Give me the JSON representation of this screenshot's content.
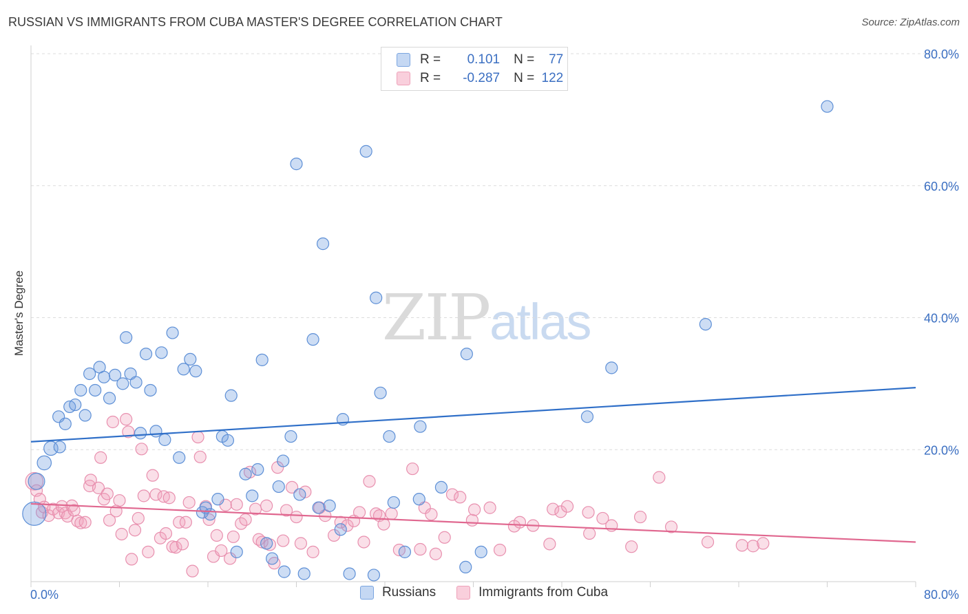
{
  "title": "RUSSIAN VS IMMIGRANTS FROM CUBA MASTER'S DEGREE CORRELATION CHART",
  "source": "Source: ZipAtlas.com",
  "watermark": {
    "part1": "ZIP",
    "part2": "atlas"
  },
  "legend": {
    "rows": [
      {
        "r_label": "R =",
        "r_value": "0.101",
        "n_label": "N =",
        "n_value": "77"
      },
      {
        "r_label": "R =",
        "r_value": "-0.287",
        "n_label": "N =",
        "n_value": "122"
      }
    ]
  },
  "chart_data": {
    "type": "scatter",
    "title": "RUSSIAN VS IMMIGRANTS FROM CUBA MASTER'S DEGREE CORRELATION CHART",
    "xlabel": "",
    "ylabel": "Master's Degree",
    "xlim": [
      0,
      80
    ],
    "ylim": [
      0,
      80
    ],
    "x_tick_labels": [
      "0.0%",
      "80.0%"
    ],
    "y_tick_labels": [
      "20.0%",
      "40.0%",
      "60.0%",
      "80.0%"
    ],
    "y_ticks": [
      20,
      40,
      60,
      80
    ],
    "grid": "horizontal dashed",
    "legend_position": "top-center",
    "colors": {
      "russians": "#6f9fe0",
      "cuba": "#f2a3bd",
      "russians_line": "#2f6fc8",
      "cuba_line": "#e0678f"
    },
    "series": [
      {
        "name": "Russians",
        "trend": [
          [
            0,
            21.2
          ],
          [
            80,
            29.4
          ]
        ],
        "points": [
          [
            0.3,
            10.3,
            2.0
          ],
          [
            0.5,
            15.2,
            1.4
          ],
          [
            1.2,
            18.0,
            1.2
          ],
          [
            1.8,
            20.2,
            1.2
          ],
          [
            2.6,
            20.4,
            1.0
          ],
          [
            2.5,
            25.0,
            1.0
          ],
          [
            3.1,
            23.9,
            1.0
          ],
          [
            3.5,
            26.5,
            1.0
          ],
          [
            4.0,
            26.8,
            1.0
          ],
          [
            4.5,
            29.0,
            1.0
          ],
          [
            4.9,
            25.2,
            1.0
          ],
          [
            5.3,
            31.5,
            1.0
          ],
          [
            5.8,
            29.0,
            1.0
          ],
          [
            6.2,
            32.5,
            1.0
          ],
          [
            6.6,
            31.0,
            1.0
          ],
          [
            7.1,
            27.8,
            1.0
          ],
          [
            7.6,
            31.3,
            1.0
          ],
          [
            8.3,
            30.0,
            1.0
          ],
          [
            8.6,
            37.0,
            1.0
          ],
          [
            9.0,
            31.5,
            1.0
          ],
          [
            9.5,
            30.2,
            1.0
          ],
          [
            9.9,
            22.5,
            1.0
          ],
          [
            10.4,
            34.5,
            1.0
          ],
          [
            10.8,
            29.0,
            1.0
          ],
          [
            11.3,
            22.8,
            1.0
          ],
          [
            11.8,
            34.7,
            1.0
          ],
          [
            12.1,
            21.5,
            1.0
          ],
          [
            12.8,
            37.7,
            1.0
          ],
          [
            13.4,
            18.8,
            1.0
          ],
          [
            13.8,
            32.2,
            1.0
          ],
          [
            14.4,
            33.7,
            1.0
          ],
          [
            14.9,
            31.9,
            1.0
          ],
          [
            15.5,
            10.5,
            1.0
          ],
          [
            15.8,
            11.2,
            1.0
          ],
          [
            16.2,
            10.2,
            1.0
          ],
          [
            16.9,
            12.5,
            1.0
          ],
          [
            17.3,
            22.0,
            1.0
          ],
          [
            17.8,
            21.4,
            1.0
          ],
          [
            18.1,
            28.2,
            1.0
          ],
          [
            18.6,
            4.5,
            1.0
          ],
          [
            19.4,
            16.3,
            1.0
          ],
          [
            20.0,
            13.0,
            1.0
          ],
          [
            20.5,
            17.0,
            1.0
          ],
          [
            20.9,
            33.6,
            1.0
          ],
          [
            21.3,
            5.8,
            1.0
          ],
          [
            21.8,
            3.5,
            1.0
          ],
          [
            22.4,
            14.4,
            1.0
          ],
          [
            22.8,
            18.3,
            1.0
          ],
          [
            22.9,
            1.5,
            1.0
          ],
          [
            23.5,
            22.0,
            1.0
          ],
          [
            24.0,
            63.3,
            1.0
          ],
          [
            24.3,
            13.2,
            1.0
          ],
          [
            24.7,
            1.2,
            1.0
          ],
          [
            25.5,
            36.7,
            1.0
          ],
          [
            26.0,
            11.2,
            1.0
          ],
          [
            26.4,
            51.2,
            1.0
          ],
          [
            27.0,
            11.5,
            1.0
          ],
          [
            28.2,
            24.6,
            1.0
          ],
          [
            28.8,
            1.2,
            1.0
          ],
          [
            28.0,
            7.9,
            1.0
          ],
          [
            30.3,
            65.2,
            1.0
          ],
          [
            31.0,
            1.0,
            1.0
          ],
          [
            31.2,
            43.0,
            1.0
          ],
          [
            31.6,
            28.6,
            1.0
          ],
          [
            32.4,
            22.0,
            1.0
          ],
          [
            32.8,
            12.0,
            1.0
          ],
          [
            33.8,
            4.5,
            1.0
          ],
          [
            35.1,
            12.5,
            1.0
          ],
          [
            35.2,
            23.5,
            1.0
          ],
          [
            37.1,
            14.3,
            1.0
          ],
          [
            39.3,
            2.2,
            1.0
          ],
          [
            39.4,
            34.5,
            1.0
          ],
          [
            40.7,
            4.5,
            1.0
          ],
          [
            50.3,
            25.0,
            1.0
          ],
          [
            52.5,
            32.4,
            1.0
          ],
          [
            61.0,
            39.0,
            1.0
          ],
          [
            72.0,
            72.0,
            1.0
          ]
        ]
      },
      {
        "name": "Immigrants from Cuba",
        "trend": [
          [
            0,
            11.8
          ],
          [
            80,
            6.0
          ]
        ],
        "points": [
          [
            0.3,
            15.2,
            1.5
          ],
          [
            0.5,
            13.8,
            1.0
          ],
          [
            0.8,
            12.5,
            1.0
          ],
          [
            1.0,
            10.5,
            1.0
          ],
          [
            1.2,
            11.3,
            1.0
          ],
          [
            1.6,
            10.0,
            1.0
          ],
          [
            2.0,
            11.0,
            1.0
          ],
          [
            2.5,
            10.4,
            1.0
          ],
          [
            2.8,
            11.4,
            1.0
          ],
          [
            3.1,
            10.4,
            1.0
          ],
          [
            3.3,
            9.9,
            1.0
          ],
          [
            3.7,
            11.5,
            1.0
          ],
          [
            3.9,
            10.8,
            1.0
          ],
          [
            4.2,
            9.2,
            1.0
          ],
          [
            4.5,
            8.9,
            1.0
          ],
          [
            4.9,
            9.0,
            1.0
          ],
          [
            5.3,
            14.5,
            1.0
          ],
          [
            5.4,
            15.4,
            1.0
          ],
          [
            6.1,
            14.2,
            1.0
          ],
          [
            6.3,
            18.8,
            1.0
          ],
          [
            6.6,
            12.5,
            1.0
          ],
          [
            6.9,
            13.3,
            1.0
          ],
          [
            7.1,
            9.3,
            1.0
          ],
          [
            7.4,
            24.2,
            1.0
          ],
          [
            7.7,
            10.7,
            1.0
          ],
          [
            8.0,
            12.3,
            1.0
          ],
          [
            8.2,
            7.2,
            1.0
          ],
          [
            8.6,
            24.6,
            1.0
          ],
          [
            8.8,
            22.7,
            1.0
          ],
          [
            9.1,
            3.4,
            1.0
          ],
          [
            9.4,
            7.8,
            1.0
          ],
          [
            9.7,
            9.6,
            1.0
          ],
          [
            10.0,
            20.1,
            1.0
          ],
          [
            10.2,
            13.0,
            1.0
          ],
          [
            10.6,
            4.5,
            1.0
          ],
          [
            11.0,
            16.1,
            1.0
          ],
          [
            11.3,
            13.2,
            1.0
          ],
          [
            11.7,
            6.6,
            1.0
          ],
          [
            12.0,
            12.9,
            1.0
          ],
          [
            12.2,
            7.3,
            1.0
          ],
          [
            12.5,
            12.7,
            1.0
          ],
          [
            12.8,
            5.3,
            1.0
          ],
          [
            13.1,
            5.2,
            1.0
          ],
          [
            13.4,
            9.0,
            1.0
          ],
          [
            13.7,
            5.7,
            1.0
          ],
          [
            14.0,
            9.0,
            1.0
          ],
          [
            14.3,
            12.0,
            1.0
          ],
          [
            14.6,
            1.6,
            1.0
          ],
          [
            15.1,
            21.9,
            1.0
          ],
          [
            15.3,
            18.9,
            1.0
          ],
          [
            15.8,
            11.4,
            1.0
          ],
          [
            16.1,
            9.4,
            1.0
          ],
          [
            16.5,
            3.8,
            1.0
          ],
          [
            16.8,
            7.0,
            1.0
          ],
          [
            17.2,
            4.7,
            1.0
          ],
          [
            17.6,
            11.6,
            1.0
          ],
          [
            18.0,
            3.5,
            1.0
          ],
          [
            18.3,
            6.8,
            1.0
          ],
          [
            18.6,
            11.7,
            1.0
          ],
          [
            19.0,
            8.8,
            1.0
          ],
          [
            19.4,
            9.4,
            1.0
          ],
          [
            19.8,
            16.6,
            1.0
          ],
          [
            20.3,
            11.0,
            1.0
          ],
          [
            20.6,
            6.4,
            1.0
          ],
          [
            20.9,
            6.0,
            1.0
          ],
          [
            21.3,
            11.5,
            1.0
          ],
          [
            21.6,
            5.6,
            1.0
          ],
          [
            22.0,
            2.8,
            1.0
          ],
          [
            22.3,
            17.3,
            1.0
          ],
          [
            22.8,
            6.2,
            1.0
          ],
          [
            23.1,
            10.8,
            1.0
          ],
          [
            23.6,
            14.3,
            1.0
          ],
          [
            24.0,
            9.8,
            1.0
          ],
          [
            24.4,
            5.8,
            1.0
          ],
          [
            24.8,
            13.6,
            1.0
          ],
          [
            25.5,
            4.5,
            1.0
          ],
          [
            26.1,
            11.2,
            1.0
          ],
          [
            26.6,
            10.0,
            1.0
          ],
          [
            27.4,
            7.0,
            1.0
          ],
          [
            28.0,
            9.0,
            1.0
          ],
          [
            28.6,
            8.5,
            1.0
          ],
          [
            29.2,
            9.2,
            1.0
          ],
          [
            29.7,
            10.5,
            1.0
          ],
          [
            30.1,
            6.0,
            1.0
          ],
          [
            30.6,
            15.2,
            1.0
          ],
          [
            31.2,
            10.3,
            1.0
          ],
          [
            31.5,
            10.0,
            1.0
          ],
          [
            31.9,
            8.7,
            1.0
          ],
          [
            32.6,
            10.3,
            1.0
          ],
          [
            33.3,
            4.8,
            1.0
          ],
          [
            34.5,
            17.1,
            1.0
          ],
          [
            35.2,
            4.9,
            1.0
          ],
          [
            35.6,
            11.2,
            1.0
          ],
          [
            36.2,
            10.2,
            1.0
          ],
          [
            36.6,
            4.2,
            1.0
          ],
          [
            37.4,
            6.7,
            1.0
          ],
          [
            38.1,
            13.2,
            1.0
          ],
          [
            38.8,
            12.8,
            1.0
          ],
          [
            39.9,
            9.3,
            1.0
          ],
          [
            40.1,
            10.9,
            1.0
          ],
          [
            41.5,
            11.2,
            1.0
          ],
          [
            42.4,
            4.8,
            1.0
          ],
          [
            43.7,
            8.4,
            1.0
          ],
          [
            44.2,
            9.0,
            1.0
          ],
          [
            45.4,
            8.5,
            1.0
          ],
          [
            46.9,
            5.7,
            1.0
          ],
          [
            47.2,
            11.0,
            1.0
          ],
          [
            47.9,
            10.6,
            1.0
          ],
          [
            48.5,
            11.4,
            1.0
          ],
          [
            50.4,
            10.5,
            1.0
          ],
          [
            50.5,
            7.3,
            1.0
          ],
          [
            51.7,
            9.6,
            1.0
          ],
          [
            52.5,
            8.5,
            1.0
          ],
          [
            54.3,
            5.3,
            1.0
          ],
          [
            55.1,
            9.8,
            1.0
          ],
          [
            56.8,
            15.8,
            1.0
          ],
          [
            57.9,
            8.3,
            1.0
          ],
          [
            61.2,
            6.0,
            1.0
          ],
          [
            64.3,
            5.5,
            1.0
          ],
          [
            65.3,
            5.4,
            1.0
          ],
          [
            66.2,
            5.8,
            1.0
          ]
        ]
      }
    ]
  },
  "bottom_legend": [
    {
      "label": "Russians"
    },
    {
      "label": "Immigrants from Cuba"
    }
  ]
}
